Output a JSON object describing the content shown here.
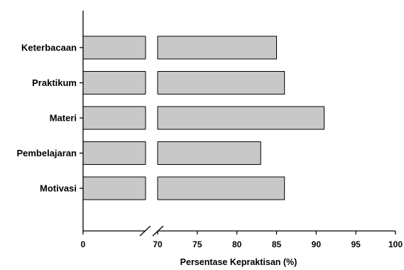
{
  "chart_data": {
    "type": "bar",
    "orientation": "horizontal",
    "categories": [
      "Keterbacaan",
      "Praktikum",
      "Materi",
      "Pembelajaran",
      "Motivasi"
    ],
    "values": [
      85,
      86,
      91,
      83,
      86
    ],
    "xlabel": "Persentase Kepraktisan (%)",
    "xlim": [
      0,
      100
    ],
    "axis_break": [
      0,
      70
    ],
    "x_ticks": [
      0,
      70,
      75,
      80,
      85,
      90,
      95,
      100
    ],
    "grid": false,
    "legend": "none",
    "bar_color": "#c8c8c8",
    "bar_edge_color": "#000000"
  }
}
